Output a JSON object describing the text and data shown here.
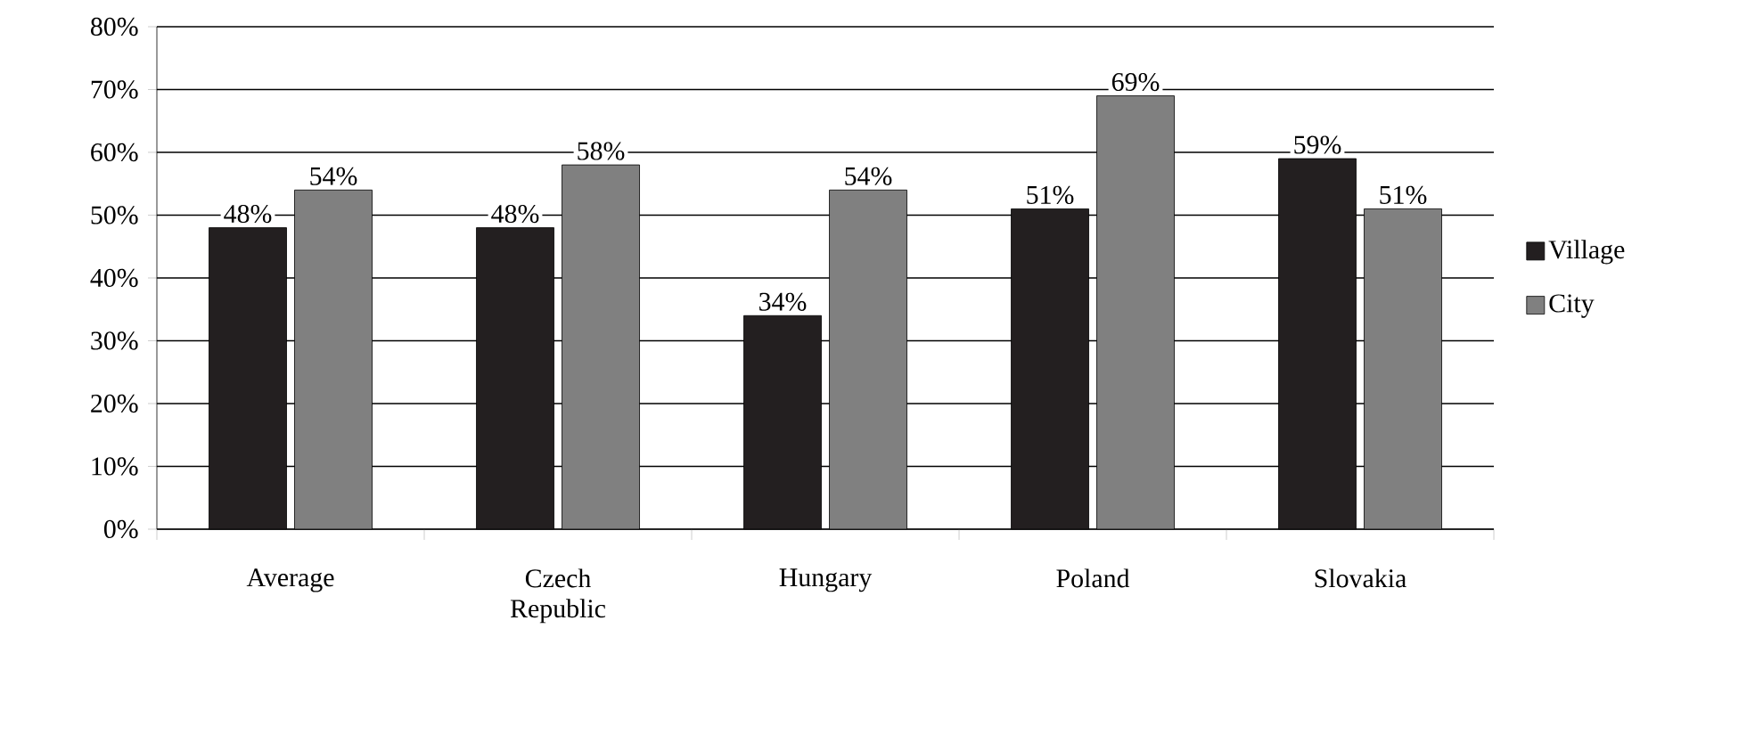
{
  "chart_data": {
    "type": "bar",
    "categories": [
      "Average",
      "Czech Republic",
      "Hungary",
      "Poland",
      "Slovakia"
    ],
    "series": [
      {
        "name": "Village",
        "color": "#231f20",
        "values": [
          48,
          48,
          34,
          51,
          59
        ],
        "value_labels": [
          "48%",
          "48%",
          "34%",
          "51%",
          "59%"
        ]
      },
      {
        "name": "City",
        "color": "#808080",
        "values": [
          54,
          58,
          54,
          69,
          51
        ],
        "value_labels": [
          "54%",
          "58%",
          "54%",
          "69%",
          "51%"
        ]
      }
    ],
    "ylim": [
      0,
      80
    ],
    "yticks": [
      {
        "value": 0,
        "label": "0%"
      },
      {
        "value": 10,
        "label": "10%"
      },
      {
        "value": 20,
        "label": "20%"
      },
      {
        "value": 30,
        "label": "30%"
      },
      {
        "value": 40,
        "label": "40%"
      },
      {
        "value": 50,
        "label": "50%"
      },
      {
        "value": 60,
        "label": "60%"
      },
      {
        "value": 70,
        "label": "70%"
      },
      {
        "value": 80,
        "label": "80%"
      }
    ],
    "grid": "y",
    "legend": "right"
  }
}
